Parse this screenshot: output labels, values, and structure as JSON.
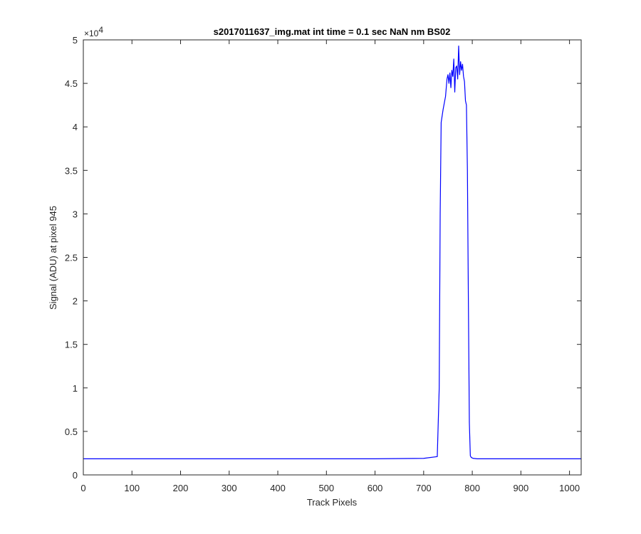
{
  "chart_data": {
    "type": "line",
    "title": "s2017011637_img.mat int time = 0.1 sec  NaN nm BS02",
    "xlabel": "Track Pixels",
    "ylabel": "Signal (ADU) at pixel 945",
    "xlim": [
      0,
      1024
    ],
    "ylim": [
      0,
      50000
    ],
    "xticks": [
      0,
      100,
      200,
      300,
      400,
      500,
      600,
      700,
      800,
      900,
      1000
    ],
    "xtick_labels": [
      "0",
      "100",
      "200",
      "300",
      "400",
      "500",
      "600",
      "700",
      "800",
      "900",
      "1000"
    ],
    "yticks": [
      0,
      5000,
      10000,
      15000,
      20000,
      25000,
      30000,
      35000,
      40000,
      45000,
      50000
    ],
    "ytick_labels": [
      "0",
      "0.5",
      "1",
      "1.5",
      "2",
      "2.5",
      "3",
      "3.5",
      "4",
      "4.5",
      "5"
    ],
    "y_exponent_base": "×10",
    "y_exponent_power": "4",
    "grid": false,
    "line_color": "#0000ff",
    "series": [
      {
        "x": [
          0,
          100,
          200,
          300,
          400,
          500,
          600,
          700,
          728,
          732,
          734,
          736,
          740,
          745,
          748,
          750,
          752,
          754,
          756,
          758,
          760,
          762,
          764,
          766,
          768,
          770,
          772,
          774,
          776,
          778,
          780,
          782,
          784,
          786,
          788,
          790,
          792,
          794,
          796,
          798,
          800,
          802,
          810,
          850,
          900,
          950,
          1000,
          1024
        ],
        "y": [
          1850,
          1850,
          1850,
          1850,
          1850,
          1850,
          1850,
          1900,
          2100,
          10000,
          30000,
          40500,
          42000,
          43500,
          45500,
          46000,
          45000,
          46200,
          44500,
          46500,
          45800,
          47800,
          44000,
          46800,
          47000,
          45500,
          49300,
          46000,
          47500,
          46500,
          47200,
          45800,
          45200,
          43000,
          42500,
          35000,
          20000,
          6000,
          2200,
          2000,
          1950,
          1900,
          1850,
          1850,
          1850,
          1850,
          1850,
          1850
        ]
      }
    ]
  }
}
